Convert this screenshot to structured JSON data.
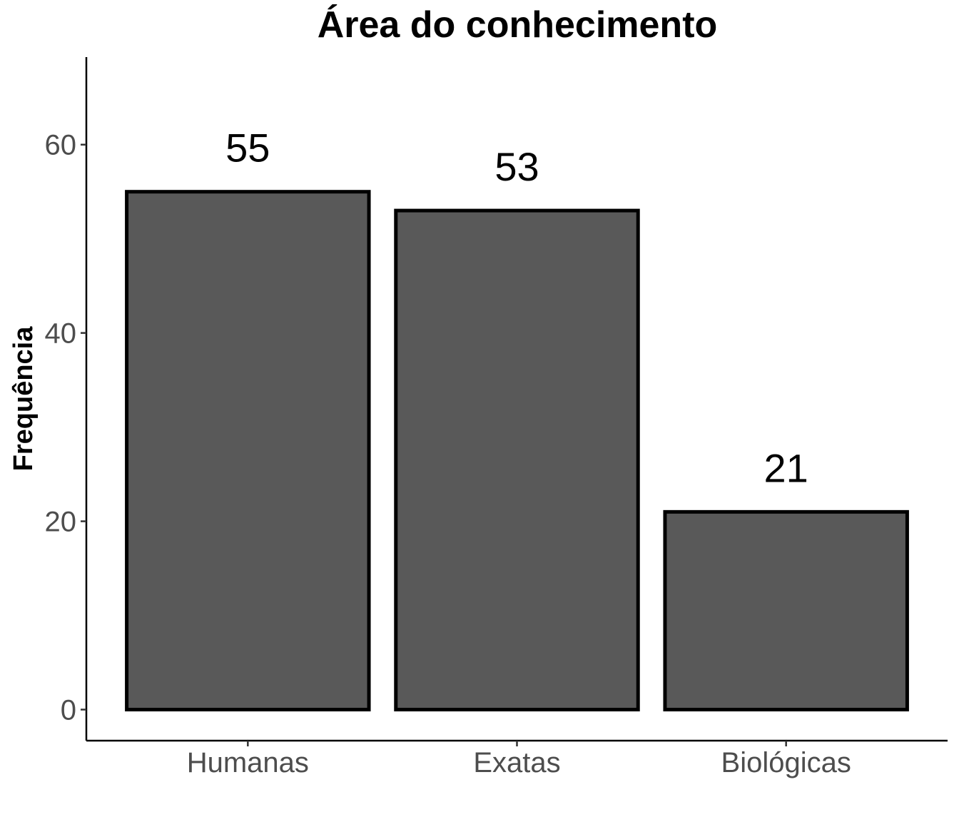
{
  "chart_data": {
    "type": "bar",
    "title": "Área do conhecimento",
    "xlabel": "",
    "ylabel": "Frequência",
    "categories": [
      "Humanas",
      "Exatas",
      "Biológicas"
    ],
    "values": [
      55,
      53,
      21
    ],
    "data_labels": [
      "55",
      "53",
      "21"
    ],
    "yticks": [
      0,
      20,
      40,
      60
    ],
    "ytick_labels": [
      "0",
      "20",
      "40",
      "60"
    ],
    "ylim": [
      -3.3,
      69.3
    ],
    "grid": false,
    "legend": "none",
    "colors": {
      "bar_fill": "#595959",
      "bar_border": "#000000"
    }
  }
}
